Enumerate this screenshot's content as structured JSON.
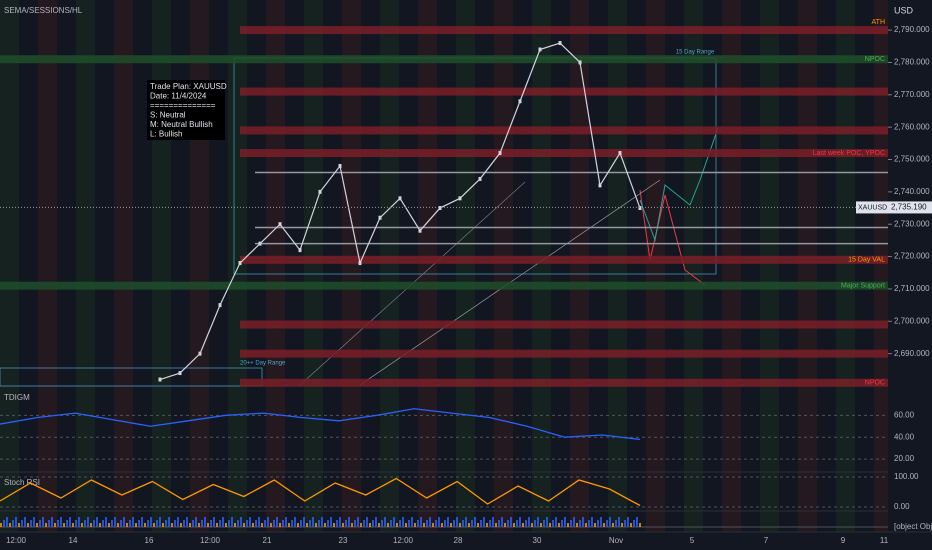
{
  "header": {
    "symbol": "SEMA/SESSIONS/HL",
    "currency": "USD"
  },
  "trade_plan": [
    "Trade Plan: XAUUSD",
    "Date: 11/4/2024",
    "==============",
    "S: Neutral",
    "M: Neutral Bullish",
    "L: Bullish"
  ],
  "chart_data": {
    "type": "line",
    "ylim": [
      2680,
      2799.3
    ],
    "yticks": [
      {
        "value": 2690,
        "label": "2,690.000"
      },
      {
        "value": 2700,
        "label": "2,700.000"
      },
      {
        "value": 2710,
        "label": "2,710.000"
      },
      {
        "value": 2720,
        "label": "2,720.000"
      },
      {
        "value": 2730,
        "label": "2,730.000"
      },
      {
        "value": 2740,
        "label": "2,740.000"
      },
      {
        "value": 2750,
        "label": "2,750.000"
      },
      {
        "value": 2760,
        "label": "2,760.000"
      },
      {
        "value": 2770,
        "label": "2,770.000"
      },
      {
        "value": 2780,
        "label": "2,780.000"
      },
      {
        "value": 2790,
        "label": "2,790.000"
      }
    ],
    "series": [
      {
        "name": "XAUUSD",
        "color": "#d1d4dc",
        "values": [
          2682,
          2684,
          2690,
          2705,
          2718,
          2724,
          2730,
          2722,
          2740,
          2748,
          2718,
          2732,
          2738,
          2728,
          2735,
          2738,
          2744,
          2752,
          2768,
          2784,
          2786,
          2780,
          2742,
          2752,
          2735
        ]
      }
    ],
    "last_price": {
      "value": 2735.19,
      "label": "2,735.190"
    },
    "levels": [
      {
        "price": 2790,
        "kind": "red",
        "label": "ATH"
      },
      {
        "price": 2781,
        "kind": "green",
        "label": "NPOC"
      },
      {
        "price": 2771,
        "kind": "red"
      },
      {
        "price": 2759,
        "kind": "red"
      },
      {
        "price": 2752,
        "kind": "red",
        "label": "Last week POC, YPOC"
      },
      {
        "price": 2746,
        "kind": "gray"
      },
      {
        "price": 2729,
        "kind": "gray"
      },
      {
        "price": 2724,
        "kind": "gray"
      },
      {
        "price": 2719,
        "kind": "red",
        "label": "15 Day VAL"
      },
      {
        "price": 2711,
        "kind": "green",
        "label": "Major Support"
      },
      {
        "price": 2699,
        "kind": "red"
      },
      {
        "price": 2690,
        "kind": "red"
      },
      {
        "price": 2681,
        "kind": "red",
        "label": "NPOC"
      }
    ],
    "ranges": [
      "15 Day Range",
      "20++ Day Range"
    ],
    "x_labels": [
      "12:00",
      "14",
      "16",
      "12:00",
      "21",
      "23",
      "12:00",
      "28",
      "30",
      "Nov",
      "5",
      "7",
      "9",
      "11"
    ]
  },
  "tdigm": {
    "title": "TDIGM",
    "ylim": [
      10,
      85
    ],
    "yticks": [
      {
        "value": 60,
        "label": "60.00"
      },
      {
        "value": 40,
        "label": "40.00"
      },
      {
        "value": 20,
        "label": "20.00"
      }
    ],
    "values": [
      52,
      58,
      62,
      56,
      50,
      55,
      60,
      62,
      58,
      55,
      60,
      66,
      62,
      58,
      50,
      40,
      42,
      38
    ]
  },
  "stoch": {
    "title": "Stoch RSI",
    "ylim": [
      -10,
      110
    ],
    "yticks": [
      {
        "value": 100,
        "label": "100.00"
      },
      {
        "value": 0,
        "label": "0.00"
      }
    ],
    "values": [
      20,
      80,
      30,
      90,
      40,
      85,
      25,
      75,
      35,
      90,
      20,
      80,
      40,
      95,
      30,
      85,
      10,
      70,
      20,
      90,
      60,
      5
    ]
  },
  "volume": {
    "yticks": [
      {
        "value": 0,
        "label": "0.000"
      }
    ]
  }
}
